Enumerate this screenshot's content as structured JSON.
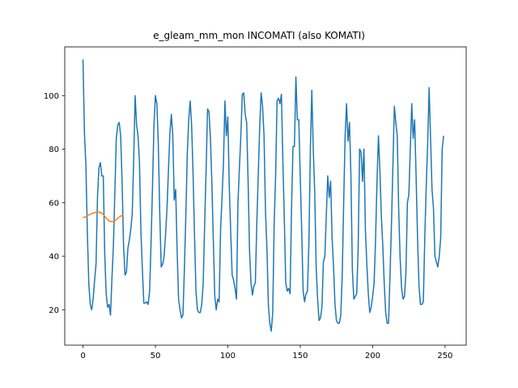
{
  "chart_data": {
    "type": "line",
    "title": "e_gleam_mm_mon INCOMATI (also KOMATI)",
    "xlabel": "",
    "ylabel": "",
    "xlim": [
      -12.6,
      264.6
    ],
    "ylim": [
      6.8,
      118.2
    ],
    "grid": false,
    "legend": "none",
    "x_ticks": [
      0,
      50,
      100,
      150,
      200,
      250
    ],
    "y_ticks": [
      20,
      40,
      60,
      80,
      100
    ],
    "series": [
      {
        "color": "#1f77b4",
        "x_start": 0,
        "x_step": 1,
        "values": [
          113.5,
          86,
          74,
          49,
          30,
          22,
          20,
          24,
          31,
          37,
          62,
          73,
          75,
          70,
          70,
          41,
          26,
          21,
          22,
          18,
          32,
          44,
          64,
          84,
          89,
          90,
          85,
          68,
          44,
          33,
          34,
          43,
          46,
          50,
          56,
          76,
          100,
          89,
          85,
          75,
          49,
          35,
          22.5,
          22.5,
          23,
          22,
          27,
          45,
          66,
          89,
          100,
          97,
          82,
          56,
          36,
          37,
          40,
          48,
          58,
          72,
          86,
          93,
          85,
          61,
          65,
          42,
          24,
          20,
          17,
          18,
          35,
          55,
          78,
          91,
          98,
          89,
          71,
          48,
          27,
          20,
          19,
          19,
          22,
          30,
          52,
          72,
          95,
          94,
          84,
          67,
          46,
          25,
          20,
          24,
          23,
          50,
          62,
          75,
          98,
          85,
          92,
          66,
          49,
          33,
          31,
          28,
          24,
          60,
          73,
          85,
          100.5,
          101,
          93,
          90,
          68,
          42,
          30,
          25.5,
          29,
          30,
          52,
          70,
          88,
          101,
          96,
          85,
          57,
          43,
          22,
          15,
          12,
          19,
          52,
          70,
          98,
          99,
          97,
          100.5,
          76,
          54,
          30,
          27,
          28,
          26,
          58,
          81,
          81,
          107,
          91,
          91,
          70,
          50,
          27,
          23,
          26,
          27,
          45,
          80,
          102,
          80,
          64,
          36,
          24,
          16,
          17,
          21,
          38,
          40,
          55,
          70,
          62,
          68,
          47,
          36,
          22,
          16,
          15,
          15,
          18,
          33,
          60,
          85,
          97,
          83,
          90,
          70,
          35,
          24,
          25,
          26,
          43,
          80,
          79,
          68,
          80,
          50,
          37,
          26,
          19,
          21,
          25,
          30,
          46,
          68,
          85,
          72,
          55,
          44,
          30,
          19,
          15,
          15,
          33,
          52,
          74,
          96,
          90,
          85,
          57,
          39,
          28,
          24,
          25,
          34,
          60,
          63,
          80,
          97,
          84,
          91,
          70,
          47,
          29,
          22,
          22,
          23,
          47,
          66,
          82,
          103,
          84,
          65,
          58,
          40,
          38,
          36,
          40,
          47,
          80,
          85
        ]
      },
      {
        "color": "#ff7f0e",
        "x_start": 0,
        "x_step": 1,
        "values": [
          54.5,
          54.6,
          54.7,
          55.1,
          55.4,
          55.7,
          55.9,
          56.1,
          56.3,
          56.4,
          56.5,
          56.5,
          56.4,
          56.1,
          55.6,
          55.0,
          54.3,
          53.7,
          53.2,
          53.0,
          52.9,
          53.0,
          53.3,
          53.7,
          54.2,
          54.6,
          55.0,
          55.3,
          55.5
        ]
      }
    ]
  }
}
